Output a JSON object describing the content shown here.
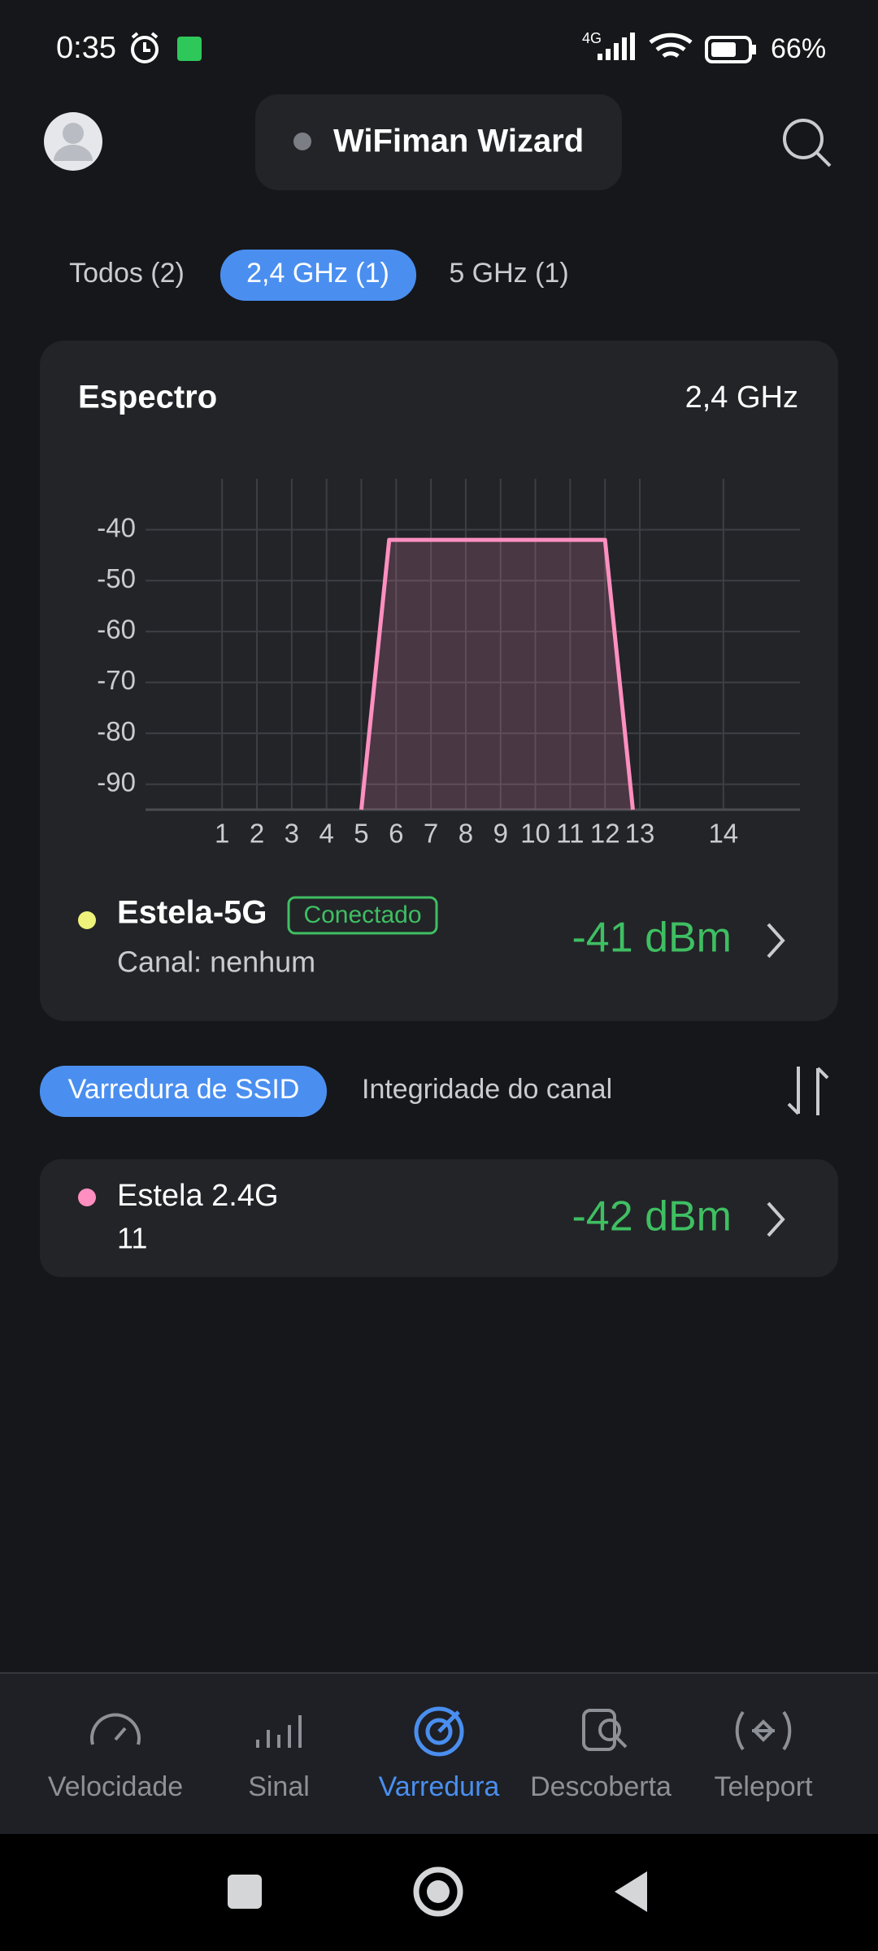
{
  "status_bar": {
    "time": "0:35",
    "network": "4G",
    "battery": "66%"
  },
  "header": {
    "title": "WiFiman Wizard"
  },
  "band_tabs": [
    "Todos (2)",
    "2,4 GHz (1)",
    "5 GHz (1)"
  ],
  "spectrum": {
    "title": "Espectro",
    "band": "2,4 GHz",
    "chart": {
      "type": "area",
      "xlim": [
        2401,
        2495
      ],
      "ylim": [
        -95,
        -30
      ],
      "yticks": [
        -40,
        -50,
        -60,
        -70,
        -80,
        -90
      ],
      "xticks": [
        {
          "value": 2412,
          "label": "1"
        },
        {
          "value": 2417,
          "label": "2"
        },
        {
          "value": 2422,
          "label": "3"
        },
        {
          "value": 2427,
          "label": "4"
        },
        {
          "value": 2432,
          "label": "5"
        },
        {
          "value": 2437,
          "label": "6"
        },
        {
          "value": 2442,
          "label": "7"
        },
        {
          "value": 2447,
          "label": "8"
        },
        {
          "value": 2452,
          "label": "9"
        },
        {
          "value": 2457,
          "label": "10"
        },
        {
          "value": 2462,
          "label": "11"
        },
        {
          "value": 2467,
          "label": "12"
        },
        {
          "value": 2472,
          "label": "13"
        },
        {
          "value": 2484,
          "label": "14"
        }
      ],
      "grid": true,
      "series": [
        {
          "color": "#ff8fc0",
          "x": [
            2432,
            2436,
            2467,
            2471
          ],
          "values": [
            -95,
            -42,
            -42,
            -95
          ]
        }
      ]
    },
    "connected": {
      "name": "Estela-5G",
      "badge": "Conectado",
      "channel": "Canal: nenhum",
      "signal": "-41 dBm"
    }
  },
  "scan_tabs": [
    "Varredura de SSID",
    "Integridade do canal"
  ],
  "networks": [
    {
      "name": "Estela 2.4G",
      "channel": "11",
      "signal": "-42 dBm"
    }
  ],
  "nav": [
    "Velocidade",
    "Sinal",
    "Varredura",
    "Descoberta",
    "Teleport"
  ]
}
